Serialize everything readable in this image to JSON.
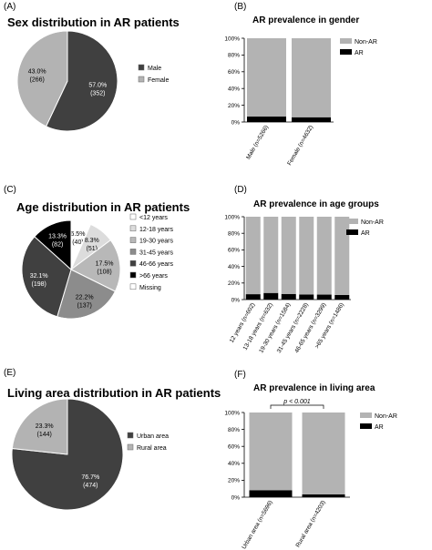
{
  "colors": {
    "dark": "#404040",
    "light": "#b3b3b3",
    "black": "#000000",
    "white": "#ffffff",
    "mid": "#8c8c8c",
    "axis": "#000000"
  },
  "chart_data": [
    {
      "panel": "(A)",
      "type": "pie",
      "title": "Sex distribution in AR patients",
      "slices": [
        {
          "label": "Male",
          "percent": "57.0%",
          "count": "(352)",
          "value": 57.0,
          "color": "#404040",
          "text_color": "#ffffff"
        },
        {
          "label": "Female",
          "percent": "43.0%",
          "count": "(266)",
          "value": 43.0,
          "color": "#b3b3b3",
          "text_color": "#000000"
        }
      ]
    },
    {
      "panel": "(B)",
      "type": "bar",
      "stacked": true,
      "title": "AR prevalence in gender",
      "categories": [
        "Male (n=5266)",
        "Female (n=4632)"
      ],
      "series": [
        {
          "name": "AR",
          "values": [
            6.5,
            5.7
          ],
          "color": "#000000"
        },
        {
          "name": "Non-AR",
          "values": [
            93.5,
            94.3
          ],
          "color": "#b3b3b3"
        }
      ],
      "yticks": [
        "0%",
        "20%",
        "40%",
        "60%",
        "80%",
        "100%"
      ],
      "ylim": [
        0,
        100
      ],
      "legend": [
        "Non-AR",
        "AR"
      ],
      "annotation": ""
    },
    {
      "panel": "(C)",
      "type": "pie",
      "title": "Age distribution in AR patients",
      "slices": [
        {
          "label": "<12 years",
          "percent": "6.5%",
          "count": "(40)",
          "value": 6.5,
          "color": "#ffffff",
          "text_color": "#000000"
        },
        {
          "label": "12-18 years",
          "percent": "8.3%",
          "count": "(51)",
          "value": 8.3,
          "color": "#dcdcdc",
          "text_color": "#000000"
        },
        {
          "label": "19-30 years",
          "percent": "17.5%",
          "count": "(108)",
          "value": 17.5,
          "color": "#b8b8b8",
          "text_color": "#000000"
        },
        {
          "label": "31-45 years",
          "percent": "22.2%",
          "count": "(137)",
          "value": 22.2,
          "color": "#8c8c8c",
          "text_color": "#000000"
        },
        {
          "label": "46-66 years",
          "percent": "32.1%",
          "count": "(198)",
          "value": 32.1,
          "color": "#404040",
          "text_color": "#ffffff"
        },
        {
          "label": ">66 years",
          "percent": "13.3%",
          "count": "(82)",
          "value": 13.3,
          "color": "#000000",
          "text_color": "#ffffff"
        },
        {
          "label": "Missing",
          "percent": "",
          "count": "",
          "value": 0,
          "color": "#ffffff",
          "text_color": "#000000"
        }
      ]
    },
    {
      "panel": "(D)",
      "type": "bar",
      "stacked": true,
      "title": "AR prevalence in age groups",
      "categories": [
        "12 years (n=602)",
        "13-18 years (n=632)",
        "19-30 years (n=1584)",
        "31-45 years (n=2228)",
        "46-65 years (n=3299)",
        ">65 years (n=1486)"
      ],
      "series": [
        {
          "name": "AR",
          "values": [
            6.5,
            8.0,
            6.8,
            6.2,
            6.0,
            5.5
          ],
          "color": "#000000"
        },
        {
          "name": "Non-AR",
          "values": [
            93.5,
            92.0,
            93.2,
            93.8,
            94.0,
            94.5
          ],
          "color": "#b3b3b3"
        }
      ],
      "yticks": [
        "0%",
        "20%",
        "40%",
        "60%",
        "80%",
        "100%"
      ],
      "ylim": [
        0,
        100
      ],
      "legend": [
        "Non-AR",
        "AR"
      ],
      "annotation": ""
    },
    {
      "panel": "(E)",
      "type": "pie",
      "title": "Living area distribution in AR patients",
      "slices": [
        {
          "label": "Urban area",
          "percent": "76.7%",
          "count": "(474)",
          "value": 76.7,
          "color": "#404040",
          "text_color": "#ffffff"
        },
        {
          "label": "Rural area",
          "percent": "23.3%",
          "count": "(144)",
          "value": 23.3,
          "color": "#b3b3b3",
          "text_color": "#000000"
        }
      ]
    },
    {
      "panel": "(F)",
      "type": "bar",
      "stacked": true,
      "title": "AR prevalence in living area",
      "categories": [
        "Urban area (n=5696)",
        "Rural area (n=4203)"
      ],
      "series": [
        {
          "name": "AR",
          "values": [
            8.3,
            3.4
          ],
          "color": "#000000"
        },
        {
          "name": "Non-AR",
          "values": [
            91.7,
            96.6
          ],
          "color": "#b3b3b3"
        }
      ],
      "yticks": [
        "0%",
        "20%",
        "40%",
        "60%",
        "80%",
        "100%"
      ],
      "ylim": [
        0,
        100
      ],
      "legend": [
        "Non-AR",
        "AR"
      ],
      "annotation": "p < 0.001"
    }
  ]
}
